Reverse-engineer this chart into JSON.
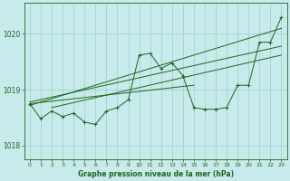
{
  "bg_color": "#c8eaea",
  "grid_color": "#9ecece",
  "line_color": "#1a6620",
  "xlabel": "Graphe pression niveau de la mer (hPa)",
  "ylim": [
    1017.75,
    1020.55
  ],
  "xlim": [
    -0.5,
    23.5
  ],
  "yticks": [
    1018,
    1019,
    1020
  ],
  "xticks": [
    0,
    1,
    2,
    3,
    4,
    5,
    6,
    7,
    8,
    9,
    10,
    11,
    12,
    13,
    14,
    15,
    16,
    17,
    18,
    19,
    20,
    21,
    22,
    23
  ],
  "line2_x": [
    0,
    23
  ],
  "line2_y": [
    1018.72,
    1020.1
  ],
  "line3_x": [
    0,
    23
  ],
  "line3_y": [
    1018.78,
    1019.78
  ],
  "line4_x": [
    2,
    23
  ],
  "line4_y": [
    1018.68,
    1019.62
  ],
  "line5_x": [
    0,
    15
  ],
  "line5_y": [
    1018.75,
    1019.08
  ],
  "markers_x": [
    0,
    1,
    2,
    3,
    4,
    5,
    6,
    7,
    8,
    9,
    10,
    11,
    12,
    13,
    14,
    15,
    16,
    17,
    18,
    19,
    20,
    21,
    22,
    23
  ],
  "markers_y": [
    1018.75,
    1018.48,
    1018.62,
    1018.52,
    1018.58,
    1018.42,
    1018.38,
    1018.62,
    1018.68,
    1018.82,
    1019.62,
    1019.65,
    1019.38,
    1019.48,
    1019.25,
    1018.68,
    1018.65,
    1018.65,
    1018.68,
    1019.08,
    1019.08,
    1019.85,
    1019.85,
    1020.3
  ]
}
